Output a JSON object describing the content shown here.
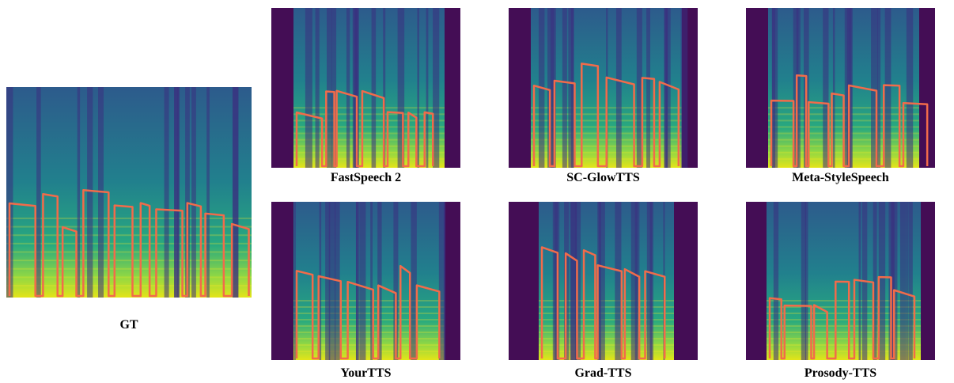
{
  "panels": [
    {
      "label": "GT"
    },
    {
      "label": "FastSpeech 2"
    },
    {
      "label": "SC-GlowTTS"
    },
    {
      "label": "Meta-StyleSpeech"
    },
    {
      "label": "YourTTS"
    },
    {
      "label": "Grad-TTS"
    },
    {
      "label": "Prosody-TTS"
    }
  ]
}
